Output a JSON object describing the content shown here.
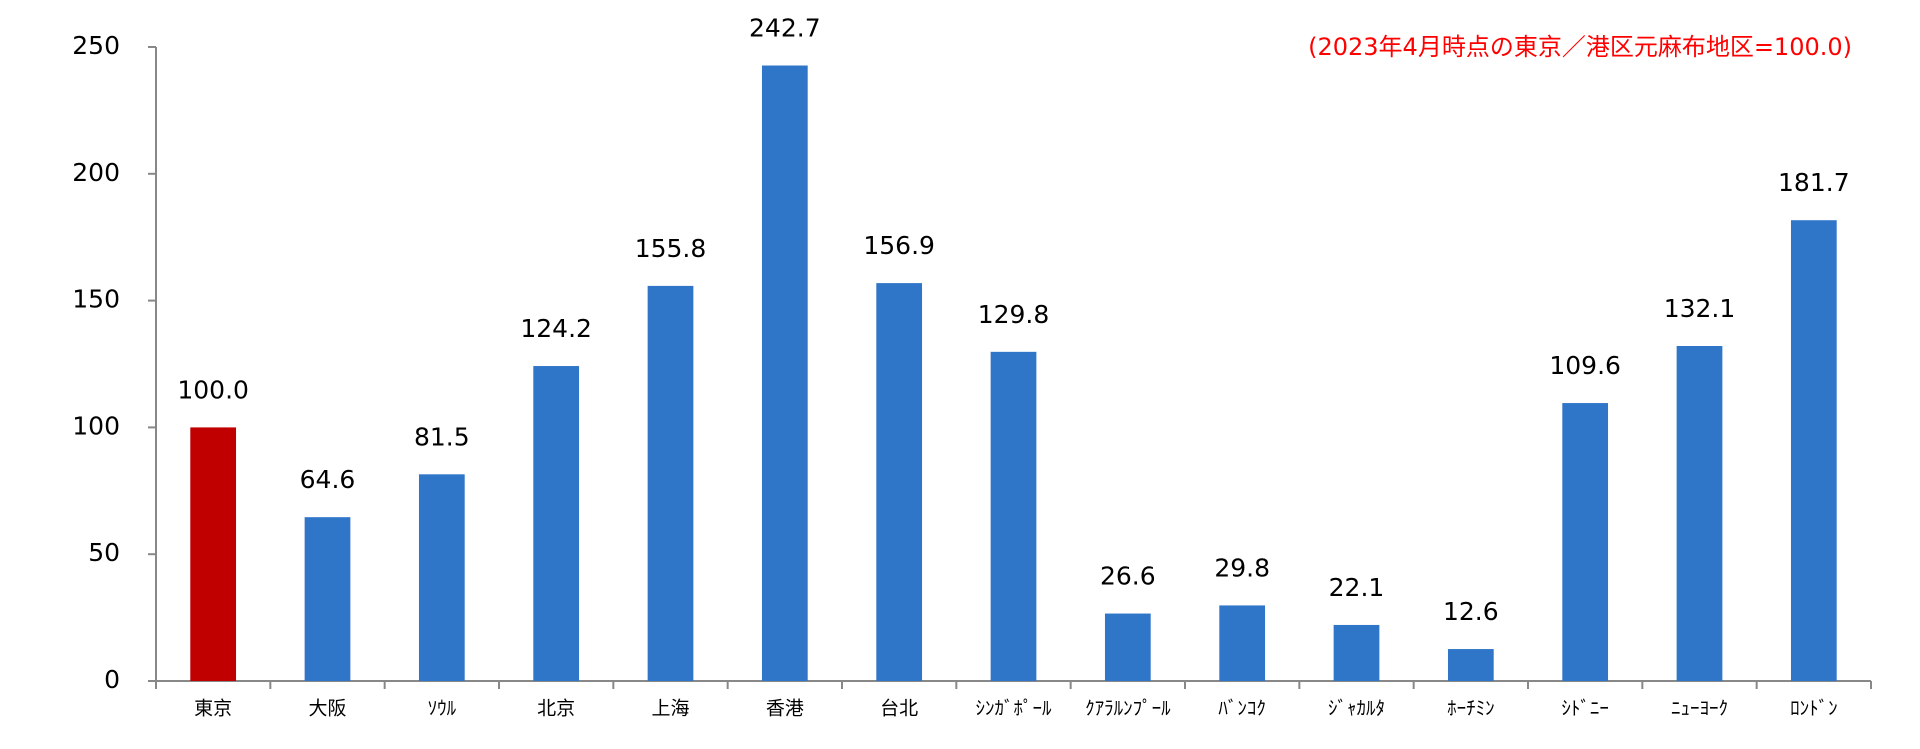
{
  "chart_data": {
    "type": "bar",
    "annotation": "(2023年4月時点の東京／港区元麻布地区=100.0)",
    "categories": [
      "東京",
      "大阪",
      "ｿｳﾙ",
      "北京",
      "上海",
      "香港",
      "台北",
      "ｼﾝｶﾞﾎﾟｰﾙ",
      "ｸｱﾗﾙﾝﾌﾟｰﾙ",
      "ﾊﾞﾝｺｸ",
      "ｼﾞｬｶﾙﾀ",
      "ﾎｰﾁﾐﾝ",
      "ｼﾄﾞﾆｰ",
      "ﾆｭｰﾖｰｸ",
      "ﾛﾝﾄﾞﾝ"
    ],
    "values": [
      100,
      64.6,
      81.5,
      124.2,
      155.8,
      242.7,
      156.9,
      129.8,
      26.6,
      29.8,
      22.1,
      12.6,
      109.6,
      132.1,
      181.7
    ],
    "value_labels": [
      "100.0",
      "64.6",
      "81.5",
      "124.2",
      "155.8",
      "242.7",
      "156.9",
      "129.8",
      "26.6",
      "29.8",
      "22.1",
      "12.6",
      "109.6",
      "132.1",
      "181.7"
    ],
    "colors": [
      "#c00000",
      "#3076c8",
      "#3076c8",
      "#3076c8",
      "#3076c8",
      "#3076c8",
      "#3076c8",
      "#3076c8",
      "#3076c8",
      "#3076c8",
      "#3076c8",
      "#3076c8",
      "#3076c8",
      "#3076c8",
      "#3076c8"
    ],
    "ylim": [
      0,
      250
    ],
    "yticks": [
      0,
      50,
      100,
      150,
      200,
      250
    ],
    "grid": false
  }
}
